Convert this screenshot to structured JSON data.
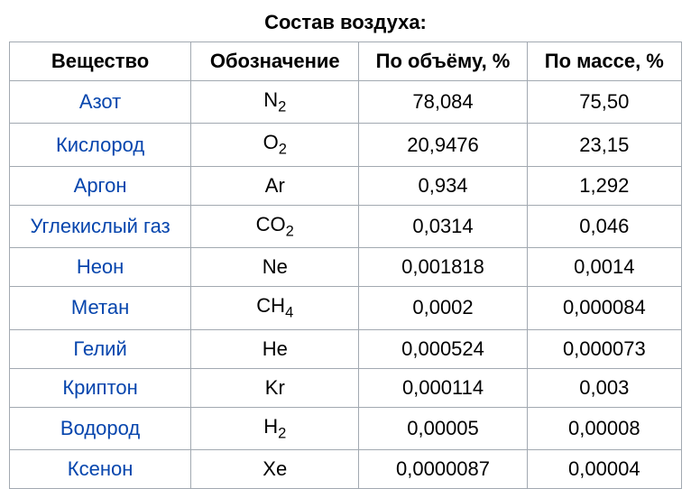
{
  "title": "Состав воздуха:",
  "headers": {
    "substance": "Вещество",
    "symbol": "Обозначение",
    "volume": "По объёму, %",
    "mass": "По массе, %"
  },
  "rows": [
    {
      "substance": "Азот",
      "formula_base": "N",
      "formula_sub": "2",
      "volume": "78,084",
      "mass": "75,50"
    },
    {
      "substance": "Кислород",
      "formula_base": "O",
      "formula_sub": "2",
      "volume": "20,9476",
      "mass": "23,15"
    },
    {
      "substance": "Аргон",
      "formula_base": "Ar",
      "formula_sub": "",
      "volume": "0,934",
      "mass": "1,292"
    },
    {
      "substance": "Углекислый газ",
      "formula_base": "CO",
      "formula_sub": "2",
      "volume": "0,0314",
      "mass": "0,046"
    },
    {
      "substance": "Неон",
      "formula_base": "Ne",
      "formula_sub": "",
      "volume": "0,001818",
      "mass": "0,0014"
    },
    {
      "substance": "Метан",
      "formula_base": "CH",
      "formula_sub": "4",
      "volume": "0,0002",
      "mass": "0,000084"
    },
    {
      "substance": "Гелий",
      "formula_base": "He",
      "formula_sub": "",
      "volume": "0,000524",
      "mass": "0,000073"
    },
    {
      "substance": "Криптон",
      "formula_base": "Kr",
      "formula_sub": "",
      "volume": "0,000114",
      "mass": "0,003"
    },
    {
      "substance": "Водород",
      "formula_base": "H",
      "formula_sub": "2",
      "volume": "0,00005",
      "mass": "0,00008"
    },
    {
      "substance": "Ксенон",
      "formula_base": "Xe",
      "formula_sub": "",
      "volume": "0,0000087",
      "mass": "0,00004"
    }
  ],
  "style": {
    "link_color": "#0645ad",
    "text_color": "#000000",
    "border_color": "#a2a9b1",
    "background": "#ffffff",
    "title_fontsize": 22,
    "cell_fontsize": 22
  }
}
